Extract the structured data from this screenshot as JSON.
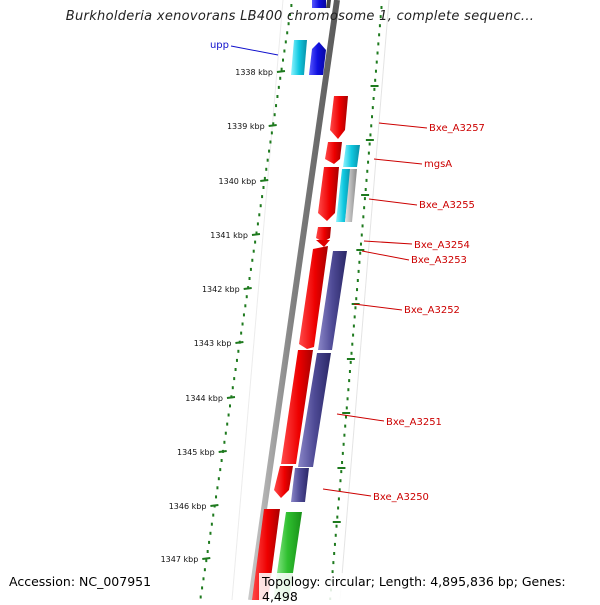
{
  "title": "Burkholderia xenovorans LB400 chromosome 1, complete sequenc...",
  "footer": {
    "accession": "Accession: NC_007951",
    "topology": "Topology: circular; Length: 4,895,836 bp; Genes: 4,498"
  },
  "colors": {
    "backbone": "#8a8a8a",
    "ticks": "#1e7a1e",
    "label_leader": "#e01010",
    "upp_label": "#1010cc"
  },
  "scale": {
    "unit": "kbp",
    "labels": [
      "1338 kbp",
      "1339 kbp",
      "1340 kbp",
      "1341 kbp",
      "1342 kbp",
      "1343 kbp",
      "1344 kbp",
      "1345 kbp",
      "1346 kbp",
      "1347 kbp"
    ]
  },
  "gene_labels": [
    {
      "name": "upp",
      "color": "#1010cc"
    },
    {
      "name": "Bxe_A3257",
      "color": "#cc0000"
    },
    {
      "name": "mgsA",
      "color": "#cc0000"
    },
    {
      "name": "Bxe_A3255",
      "color": "#cc0000"
    },
    {
      "name": "Bxe_A3254",
      "color": "#cc0000"
    },
    {
      "name": "Bxe_A3253",
      "color": "#cc0000"
    },
    {
      "name": "Bxe_A3252",
      "color": "#cc0000"
    },
    {
      "name": "Bxe_A3251",
      "color": "#cc0000"
    },
    {
      "name": "Bxe_A3250",
      "color": "#cc0000"
    }
  ]
}
